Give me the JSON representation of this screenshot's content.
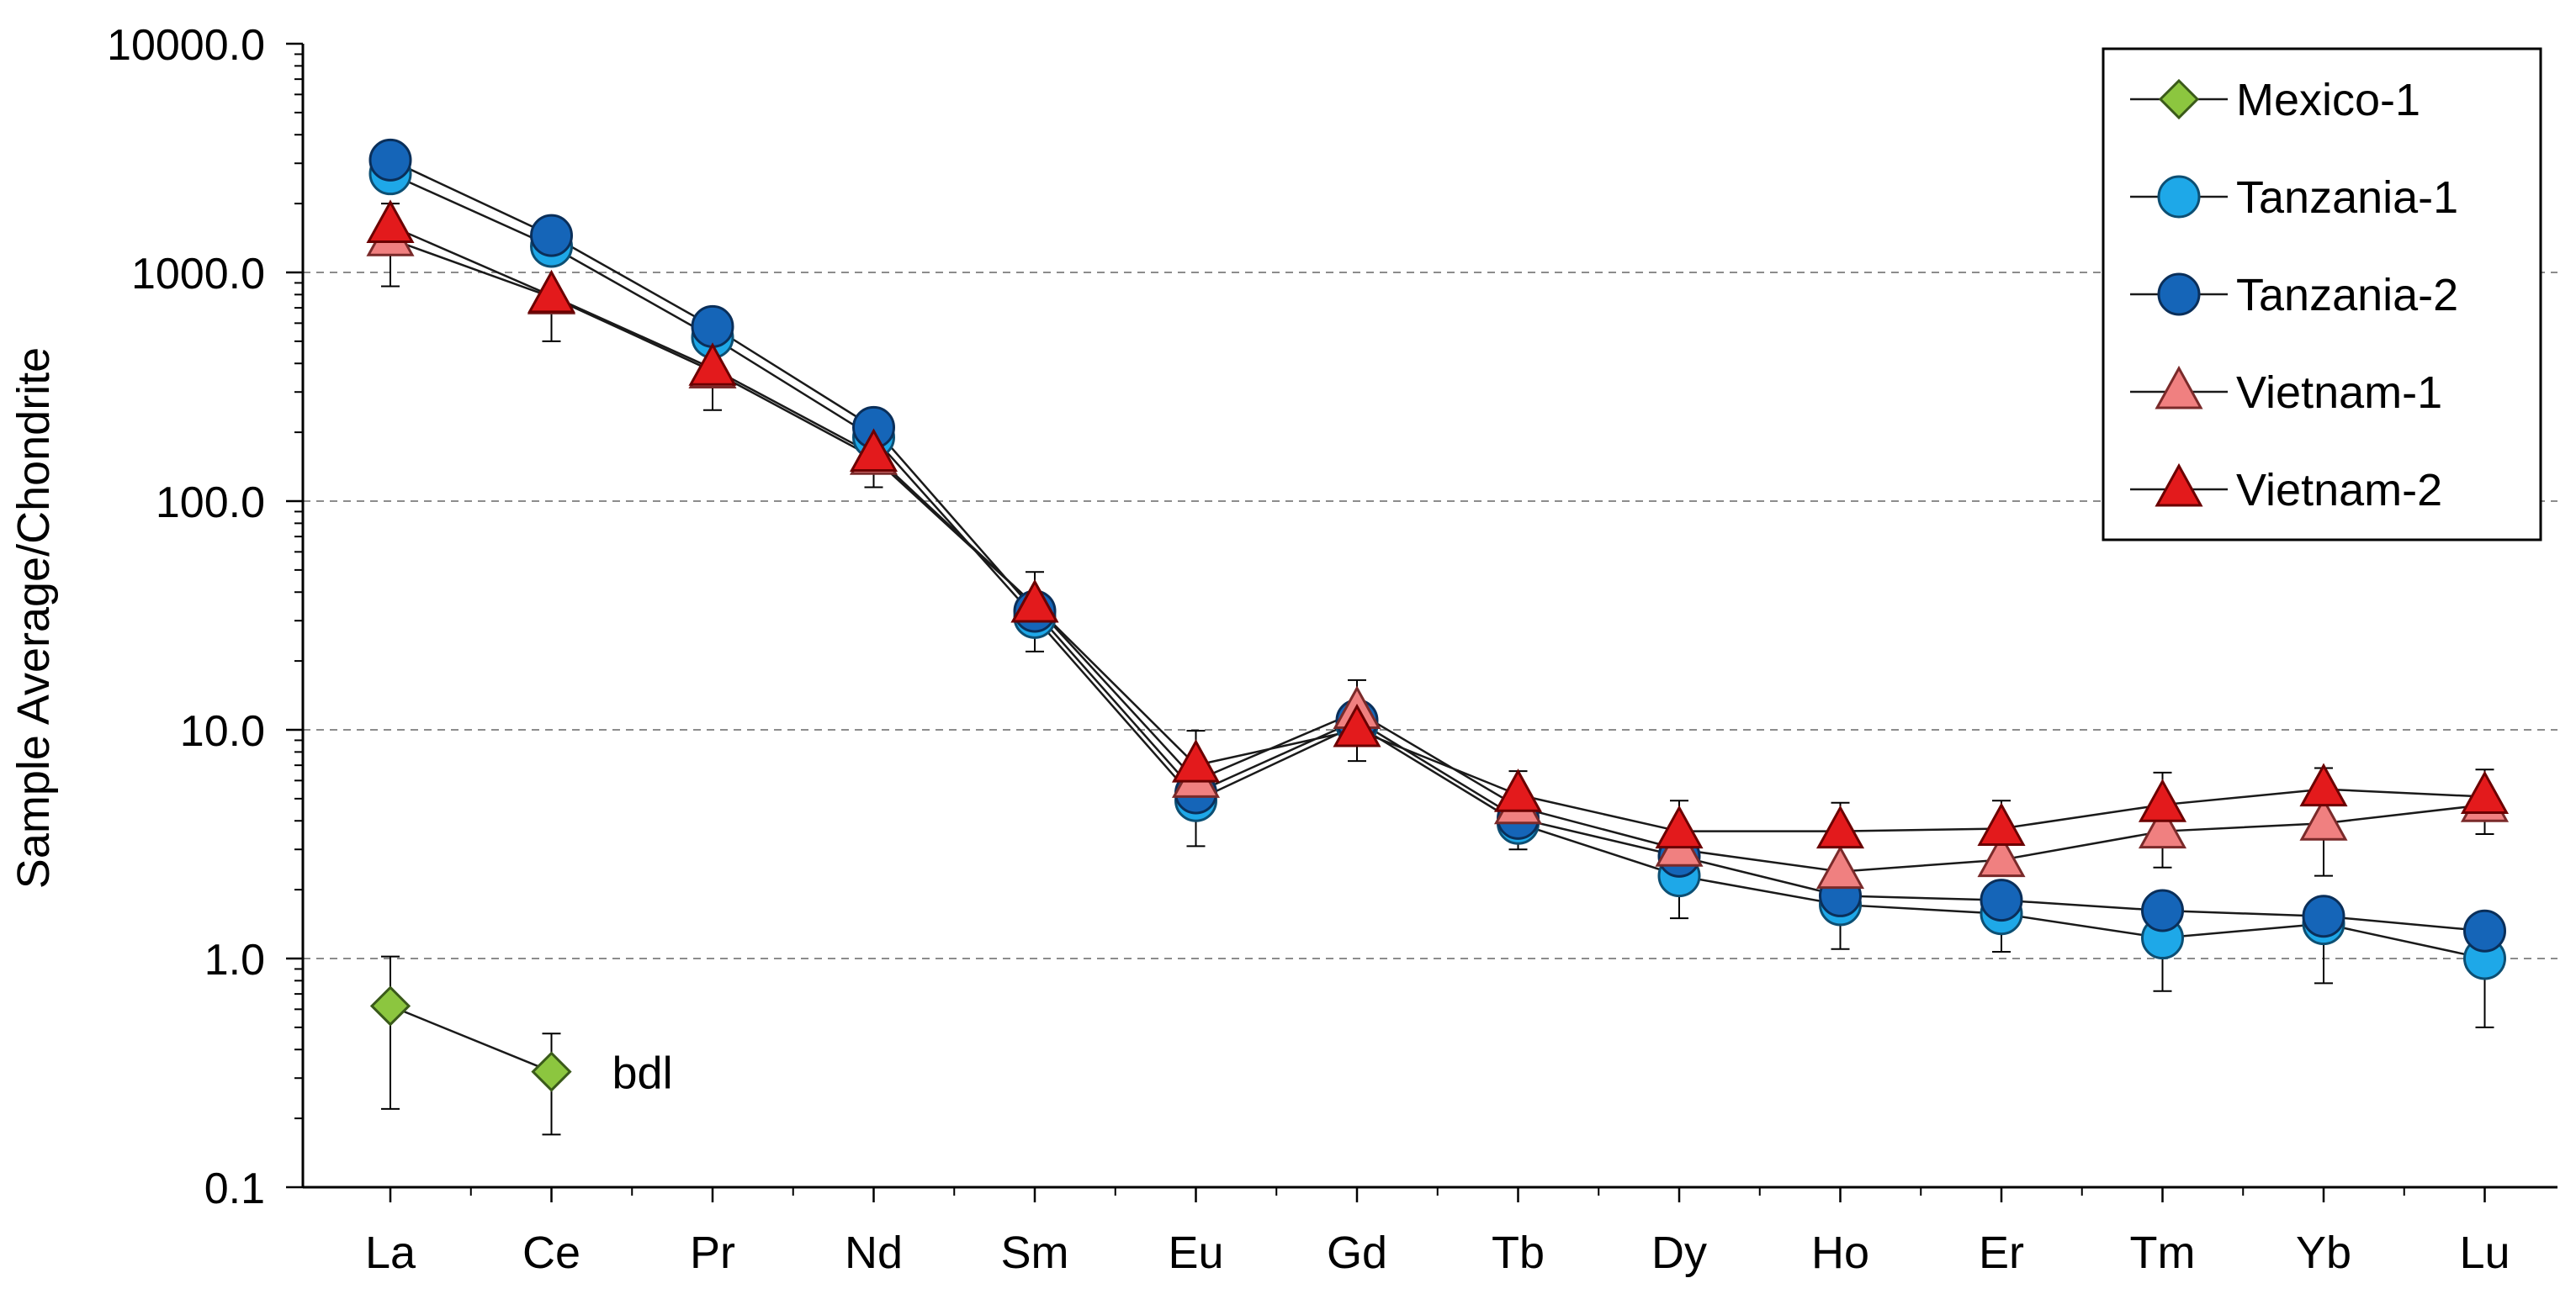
{
  "chart_data": {
    "type": "line",
    "ylabel": "Sample Average/Chondrite",
    "yscale": "log",
    "ylim": [
      0.1,
      10000
    ],
    "yticks": [
      {
        "value": 10000,
        "label": "10000.0"
      },
      {
        "value": 1000,
        "label": "1000.0"
      },
      {
        "value": 100,
        "label": "100.0"
      },
      {
        "value": 10,
        "label": "10.0"
      },
      {
        "value": 1,
        "label": "1.0"
      },
      {
        "value": 0.1,
        "label": "0.1"
      }
    ],
    "grid": "dashed horizontal at each decade",
    "legend_position": "top-right",
    "categories": [
      "La",
      "Ce",
      "Pr",
      "Nd",
      "Sm",
      "Eu",
      "Gd",
      "Tb",
      "Dy",
      "Ho",
      "Er",
      "Tm",
      "Yb",
      "Lu"
    ],
    "series": [
      {
        "name": "Mexico-1",
        "marker": "diamond",
        "color": "#8cc63f",
        "stroke": "#3a5a1a",
        "values": [
          0.62,
          0.32,
          null,
          null,
          null,
          null,
          null,
          null,
          null,
          null,
          null,
          null,
          null,
          null
        ],
        "error_low": [
          0.22,
          0.17,
          null,
          null,
          null,
          null,
          null,
          null,
          null,
          null,
          null,
          null,
          null,
          null
        ],
        "error_high": [
          1.02,
          0.47,
          null,
          null,
          null,
          null,
          null,
          null,
          null,
          null,
          null,
          null,
          null,
          null
        ]
      },
      {
        "name": "Tanzania-1",
        "marker": "circle",
        "color": "#1ea8e8",
        "stroke": "#0d4f73",
        "values": [
          2700,
          1300,
          520,
          190,
          31,
          4.9,
          10.5,
          3.9,
          2.3,
          1.72,
          1.57,
          1.23,
          1.42,
          1.0
        ],
        "error_low": [
          null,
          null,
          null,
          null,
          null,
          3.1,
          null,
          null,
          1.5,
          1.1,
          1.07,
          0.72,
          0.78,
          0.5
        ],
        "error_high": [
          null,
          null,
          null,
          null,
          null,
          null,
          null,
          null,
          null,
          null,
          null,
          null,
          null,
          null
        ]
      },
      {
        "name": "Tanzania-2",
        "marker": "circle",
        "color": "#1565b8",
        "stroke": "#0a2f5a",
        "values": [
          3100,
          1450,
          580,
          210,
          33,
          5.3,
          11.0,
          4.1,
          2.8,
          1.88,
          1.8,
          1.62,
          1.53,
          1.32
        ],
        "error_low": [
          null,
          null,
          null,
          null,
          null,
          null,
          null,
          null,
          null,
          null,
          null,
          null,
          null,
          null
        ],
        "error_high": [
          null,
          null,
          null,
          null,
          null,
          null,
          null,
          null,
          null,
          null,
          null,
          null,
          null,
          null
        ]
      },
      {
        "name": "Vietnam-1",
        "marker": "triangle",
        "color": "#f08080",
        "stroke": "#7a2a2a",
        "values": [
          1400,
          780,
          370,
          155,
          35,
          6.0,
          12.0,
          4.6,
          3.0,
          2.4,
          2.7,
          3.6,
          3.9,
          4.7
        ],
        "error_low": [
          870,
          500,
          250,
          115,
          22,
          null,
          7.3,
          3.0,
          null,
          null,
          null,
          2.5,
          2.3,
          3.5
        ],
        "error_high": [
          null,
          null,
          null,
          null,
          null,
          null,
          16.5,
          null,
          null,
          null,
          null,
          null,
          null,
          null
        ]
      },
      {
        "name": "Vietnam-2",
        "marker": "triangle",
        "color": "#e31a1c",
        "stroke": "#6b0000",
        "values": [
          1600,
          790,
          380,
          160,
          35,
          7.0,
          10.0,
          5.2,
          3.6,
          3.6,
          3.7,
          4.7,
          5.5,
          5.1
        ],
        "error_low": [
          null,
          null,
          null,
          null,
          null,
          null,
          null,
          null,
          null,
          null,
          null,
          null,
          null,
          null
        ],
        "error_high": [
          2000,
          null,
          null,
          null,
          49,
          9.9,
          null,
          6.6,
          4.9,
          4.8,
          4.9,
          6.5,
          6.8,
          6.7
        ]
      }
    ],
    "annotations": [
      {
        "text": "bdl",
        "category": "Ce",
        "value": 0.32
      }
    ]
  }
}
